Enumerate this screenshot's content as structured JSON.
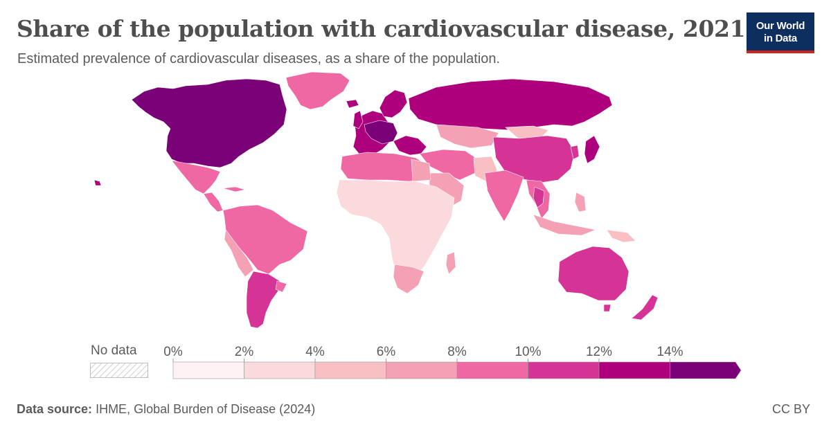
{
  "header": {
    "title": "Share of the population with cardiovascular disease, 2021",
    "subtitle": "Estimated prevalence of cardiovascular diseases, as a share of the population.",
    "logo_line1": "Our World",
    "logo_line2": "in Data"
  },
  "legend": {
    "no_data_label": "No data",
    "ticks": [
      "0%",
      "2%",
      "4%",
      "6%",
      "8%",
      "10%",
      "12%",
      "14%"
    ],
    "bins": [
      {
        "range": "0–2%",
        "color": "#fdf1f3"
      },
      {
        "range": "2–4%",
        "color": "#fbdadd"
      },
      {
        "range": "4–6%",
        "color": "#f9c0c4"
      },
      {
        "range": "6–8%",
        "color": "#f4a0b5"
      },
      {
        "range": "8–10%",
        "color": "#ef67a3"
      },
      {
        "range": "10–12%",
        "color": "#d63396"
      },
      {
        "range": "12–14%",
        "color": "#ae007d"
      },
      {
        "range": "14%+",
        "color": "#7a0177"
      }
    ],
    "no_data_color": "#e6e6e6"
  },
  "footer": {
    "source_label": "Data source:",
    "source_text": "IHME, Global Burden of Disease (2024)",
    "license": "CC BY"
  }
}
